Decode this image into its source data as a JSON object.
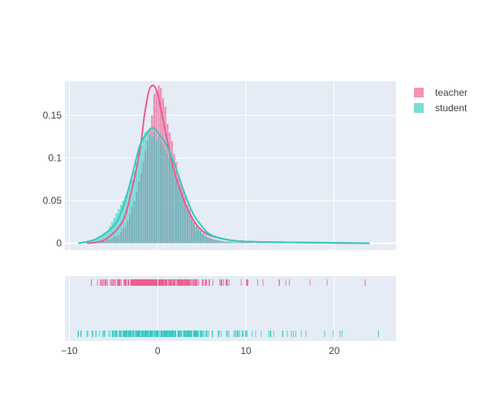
{
  "chart_data": {
    "type": "distplot",
    "title": "",
    "xlabel": "",
    "ylabel": "",
    "x_range": [
      -10.5,
      27
    ],
    "x_ticks": [
      -10,
      0,
      10,
      20
    ],
    "y_range": [
      -0.008,
      0.19
    ],
    "y_ticks": [
      0,
      0.05,
      0.1,
      0.15
    ],
    "y_tick_labels": [
      "0",
      "0.05",
      "0.1",
      "0.15"
    ],
    "grid": true,
    "legend_position": "top-right",
    "series": [
      {
        "name": "teacher",
        "color": "#ef5a8f",
        "bins_start": -7.5,
        "bin_width": 0.25,
        "hist_density": [
          0.001,
          0.001,
          0.002,
          0.002,
          0.002,
          0.003,
          0.003,
          0.004,
          0.005,
          0.006,
          0.008,
          0.008,
          0.01,
          0.013,
          0.017,
          0.02,
          0.026,
          0.033,
          0.043,
          0.05,
          0.06,
          0.072,
          0.082,
          0.096,
          0.108,
          0.12,
          0.135,
          0.15,
          0.175,
          0.18,
          0.185,
          0.182,
          0.17,
          0.16,
          0.14,
          0.13,
          0.12,
          0.105,
          0.095,
          0.08,
          0.07,
          0.063,
          0.055,
          0.045,
          0.04,
          0.032,
          0.025,
          0.02,
          0.017,
          0.014,
          0.011,
          0.009,
          0.007,
          0.006,
          0.005,
          0.004,
          0.004,
          0.003,
          0.003,
          0.002,
          0.002,
          0.002,
          0.002,
          0.001,
          0.001,
          0.001,
          0.001,
          0.001,
          0.001,
          0.001
        ],
        "kde_x": [
          -8,
          -6,
          -4,
          -3,
          -2,
          -1.5,
          -1,
          -0.5,
          0,
          0.5,
          1,
          1.5,
          2,
          3,
          4,
          5,
          6,
          8,
          10,
          15,
          20,
          24
        ],
        "kde_y": [
          0,
          0.004,
          0.025,
          0.06,
          0.11,
          0.15,
          0.178,
          0.185,
          0.175,
          0.15,
          0.125,
          0.1,
          0.08,
          0.05,
          0.028,
          0.015,
          0.009,
          0.004,
          0.002,
          0.001,
          0.0005,
          0
        ],
        "rug_range": [
          -7.5,
          23.5
        ]
      },
      {
        "name": "student",
        "color": "#2ecbbf",
        "bins_start": -9,
        "bin_width": 0.25,
        "hist_density": [
          0.001,
          0.001,
          0.002,
          0.002,
          0.002,
          0.003,
          0.004,
          0.005,
          0.006,
          0.008,
          0.009,
          0.01,
          0.012,
          0.015,
          0.02,
          0.025,
          0.03,
          0.035,
          0.04,
          0.045,
          0.05,
          0.055,
          0.06,
          0.068,
          0.075,
          0.085,
          0.095,
          0.105,
          0.115,
          0.125,
          0.13,
          0.132,
          0.128,
          0.125,
          0.13,
          0.12,
          0.125,
          0.12,
          0.115,
          0.11,
          0.105,
          0.1,
          0.095,
          0.085,
          0.075,
          0.07,
          0.065,
          0.055,
          0.045,
          0.04,
          0.035,
          0.028,
          0.024,
          0.02,
          0.018,
          0.015,
          0.012,
          0.01,
          0.008,
          0.007,
          0.006,
          0.005,
          0.004,
          0.004,
          0.003,
          0.003,
          0.002,
          0.002,
          0.002,
          0.002,
          0.001,
          0.001,
          0.001,
          0.001,
          0.001,
          0.001,
          0.001,
          0.001,
          0.001,
          0.001
        ],
        "kde_x": [
          -9,
          -7,
          -5,
          -4,
          -3,
          -2,
          -1,
          -0.5,
          0,
          1,
          2,
          3,
          4,
          5,
          6,
          8,
          10,
          15,
          20,
          24
        ],
        "kde_y": [
          0,
          0.005,
          0.02,
          0.04,
          0.075,
          0.115,
          0.132,
          0.135,
          0.13,
          0.115,
          0.09,
          0.06,
          0.035,
          0.02,
          0.01,
          0.004,
          0.002,
          0.001,
          0.0005,
          0
        ],
        "rug_range": [
          -9,
          25
        ]
      }
    ]
  }
}
